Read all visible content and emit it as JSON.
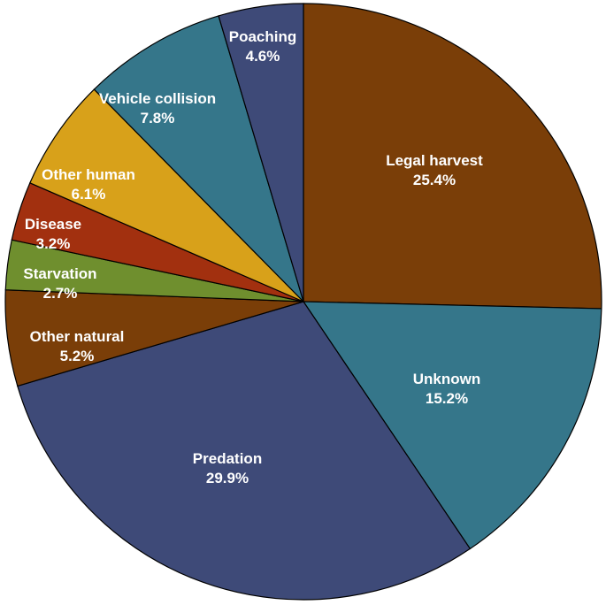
{
  "chart_data": {
    "type": "pie",
    "title": "",
    "start_angle_deg": 90,
    "direction": "clockwise",
    "slices": [
      {
        "label": "Legal harvest",
        "value": 25.4,
        "value_label": "25.4%",
        "color": "#7a3e08"
      },
      {
        "label": "Unknown",
        "value": 15.2,
        "value_label": "15.2%",
        "color": "#35768a"
      },
      {
        "label": "Predation",
        "value": 29.9,
        "value_label": "29.9%",
        "color": "#3e4a78"
      },
      {
        "label": "Other natural",
        "value": 5.2,
        "value_label": "5.2%",
        "color": "#7a3e08"
      },
      {
        "label": "Starvation",
        "value": 2.7,
        "value_label": "2.7%",
        "color": "#6f8f2e"
      },
      {
        "label": "Disease",
        "value": 3.2,
        "value_label": "3.2%",
        "color": "#a2300f"
      },
      {
        "label": "Other human",
        "value": 6.1,
        "value_label": "6.1%",
        "color": "#d8a11a"
      },
      {
        "label": "Vehicle collision",
        "value": 7.8,
        "value_label": "7.8%",
        "color": "#35768a"
      },
      {
        "label": "Poaching",
        "value": 4.6,
        "value_label": "4.6%",
        "color": "#3e4a78"
      }
    ]
  }
}
